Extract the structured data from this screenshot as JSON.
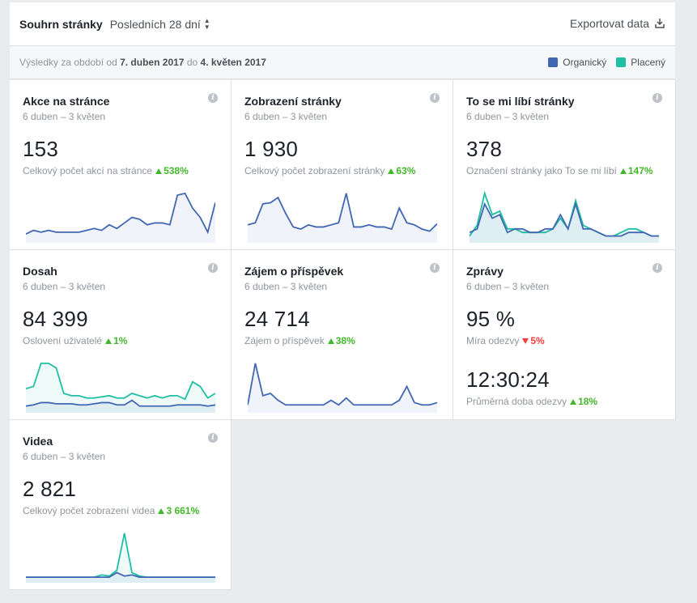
{
  "header": {
    "title": "Souhrn stránky",
    "period": "Posledních 28 dní",
    "export": "Exportovat data"
  },
  "subheader": {
    "prefix": "Výsledky za období od",
    "from": "7. duben 2017",
    "mid": "do",
    "to": "4. květen 2017",
    "legend": [
      {
        "label": "Organický",
        "color": "#4267b2"
      },
      {
        "label": "Placený",
        "color": "#1fbfa3"
      }
    ]
  },
  "cards": [
    {
      "title": "Akce na stránce",
      "date": "6 duben – 3 květen",
      "value": "153",
      "desc": "Celkový počet akcí na stránce",
      "delta": "538%",
      "trend": "up",
      "series": {
        "organic": [
          3,
          5,
          4,
          5,
          4,
          4,
          4,
          4,
          5,
          6,
          5,
          8,
          6,
          9,
          12,
          11,
          8,
          9,
          9,
          8,
          24,
          25,
          17,
          12,
          4,
          20
        ],
        "paid": null
      }
    },
    {
      "title": "Zobrazení stránky",
      "date": "6 duben – 3 květen",
      "value": "1 930",
      "desc": "Celkový počet zobrazení stránky",
      "delta": "63%",
      "trend": "up",
      "series": {
        "organic": [
          14,
          16,
          34,
          35,
          40,
          25,
          12,
          10,
          14,
          12,
          12,
          14,
          16,
          44,
          12,
          12,
          14,
          12,
          12,
          10,
          30,
          16,
          14,
          10,
          8,
          15
        ],
        "paid": null
      }
    },
    {
      "title": "To se mi líbí stránky",
      "date": "6 duben – 3 květen",
      "value": "378",
      "desc": "Označení stránky jako To se mi líbí",
      "delta": "147%",
      "trend": "up",
      "series": {
        "organic": [
          4,
          6,
          20,
          12,
          14,
          4,
          6,
          6,
          4,
          4,
          6,
          6,
          14,
          6,
          20,
          6,
          6,
          4,
          2,
          2,
          2,
          4,
          4,
          4,
          2,
          2
        ],
        "paid": [
          2,
          8,
          26,
          14,
          16,
          6,
          6,
          4,
          4,
          4,
          4,
          6,
          12,
          6,
          22,
          8,
          6,
          4,
          2,
          2,
          4,
          6,
          6,
          4,
          2,
          2
        ]
      }
    },
    {
      "title": "Dosah",
      "date": "6 duben – 3 květen",
      "value": "84 399",
      "desc": "Oslovení uživatelé",
      "delta": "1%",
      "trend": "up",
      "series": {
        "organic": [
          3,
          4,
          6,
          6,
          5,
          5,
          5,
          4,
          4,
          5,
          6,
          6,
          4,
          4,
          8,
          3,
          3,
          3,
          3,
          3,
          4,
          4,
          4,
          4,
          3,
          4
        ],
        "paid": [
          18,
          20,
          40,
          40,
          36,
          14,
          12,
          12,
          10,
          10,
          11,
          12,
          10,
          10,
          14,
          12,
          10,
          12,
          10,
          12,
          12,
          9,
          24,
          20,
          10,
          14
        ]
      }
    },
    {
      "title": "Zájem o příspěvek",
      "date": "6 duben – 3 květen",
      "value": "24 714",
      "desc": "Zájem o příspěvek",
      "delta": "38%",
      "trend": "up",
      "series": {
        "organic": [
          4,
          40,
          12,
          14,
          8,
          4,
          4,
          4,
          4,
          4,
          4,
          8,
          4,
          10,
          4,
          4,
          4,
          4,
          4,
          4,
          8,
          20,
          6,
          4,
          4,
          6
        ],
        "paid": null
      }
    },
    {
      "title": "Zprávy",
      "date": "6 duben – 3 květen",
      "value": "95 %",
      "desc": "Míra odezvy",
      "delta": "5%",
      "trend": "down",
      "value2": "12:30:24",
      "desc2": "Průměrná doba odezvy",
      "delta2": "18%",
      "trend2": "up",
      "series": null
    },
    {
      "title": "Videa",
      "date": "6 duben – 3 květen",
      "value": "2 821",
      "desc": "Celkový počet zobrazení videa",
      "delta": "3 661%",
      "trend": "up",
      "series": {
        "organic": [
          2,
          2,
          2,
          2,
          2,
          2,
          2,
          2,
          2,
          2,
          2,
          2,
          6,
          3,
          4,
          2,
          2,
          2,
          2,
          2,
          2,
          2,
          2,
          2,
          2,
          2
        ],
        "paid": [
          2,
          2,
          2,
          2,
          2,
          2,
          2,
          2,
          2,
          2,
          4,
          3,
          8,
          40,
          6,
          3,
          2,
          2,
          2,
          2,
          2,
          2,
          2,
          2,
          2,
          2
        ]
      }
    }
  ]
}
